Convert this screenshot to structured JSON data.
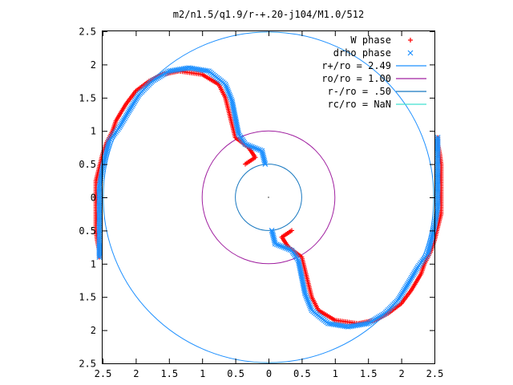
{
  "chart_data": {
    "type": "scatter",
    "title": "m2/n1.5/q1.9/r-+.20-j104/M1.0/512",
    "xlabel": "",
    "ylabel": "",
    "xlim": [
      -2.5,
      2.5
    ],
    "ylim": [
      -2.5,
      2.5
    ],
    "xticks": [
      -2.5,
      -2,
      -1.5,
      -1,
      -0.5,
      0,
      0.5,
      1,
      1.5,
      2,
      2.5
    ],
    "yticks": [
      -2.5,
      -2,
      -1.5,
      -1,
      -0.5,
      0,
      0.5,
      1,
      1.5,
      2,
      2.5
    ],
    "xtick_labels": [
      "2.5",
      "2",
      "1.5",
      "1",
      "0.5",
      "0",
      "0.5",
      "1",
      "1.5",
      "2",
      "2.5"
    ],
    "ytick_labels": [
      "2.5",
      "2",
      "1.5",
      "1",
      "0.5",
      "0",
      "0.5",
      "1",
      "1.5",
      "2",
      "2.5"
    ],
    "grid": false,
    "legend_position": "top-right",
    "series": [
      {
        "name": "W phase",
        "marker": "plus",
        "color": "#ff0000",
        "arms": [
          [
            [
              -0.35,
              0.5
            ],
            [
              -0.2,
              0.6
            ],
            [
              -0.3,
              0.75
            ],
            [
              -0.5,
              0.9
            ],
            [
              -0.55,
              1.1
            ],
            [
              -0.6,
              1.3
            ],
            [
              -0.65,
              1.5
            ],
            [
              -0.75,
              1.7
            ],
            [
              -1.0,
              1.85
            ],
            [
              -1.35,
              1.9
            ],
            [
              -1.6,
              1.85
            ],
            [
              -1.8,
              1.75
            ],
            [
              -2.0,
              1.6
            ],
            [
              -2.15,
              1.4
            ],
            [
              -2.3,
              1.15
            ],
            [
              -2.35,
              1.0
            ],
            [
              -2.45,
              0.8
            ],
            [
              -2.5,
              0.65
            ],
            [
              -2.55,
              0.45
            ],
            [
              -2.6,
              0.25
            ],
            [
              -2.6,
              0.05
            ],
            [
              -2.6,
              -0.15
            ],
            [
              -2.6,
              -0.35
            ],
            [
              -2.6,
              -0.5
            ],
            [
              -2.58,
              -0.65
            ],
            [
              -2.55,
              -0.8
            ],
            [
              -2.55,
              -0.9
            ]
          ],
          [
            [
              0.35,
              -0.5
            ],
            [
              0.2,
              -0.6
            ],
            [
              0.3,
              -0.75
            ],
            [
              0.5,
              -0.9
            ],
            [
              0.55,
              -1.1
            ],
            [
              0.6,
              -1.3
            ],
            [
              0.65,
              -1.5
            ],
            [
              0.75,
              -1.7
            ],
            [
              1.0,
              -1.85
            ],
            [
              1.35,
              -1.9
            ],
            [
              1.6,
              -1.85
            ],
            [
              1.8,
              -1.75
            ],
            [
              2.0,
              -1.6
            ],
            [
              2.15,
              -1.4
            ],
            [
              2.3,
              -1.15
            ],
            [
              2.35,
              -1.0
            ],
            [
              2.45,
              -0.8
            ],
            [
              2.5,
              -0.65
            ],
            [
              2.55,
              -0.45
            ],
            [
              2.6,
              -0.25
            ],
            [
              2.6,
              -0.05
            ],
            [
              2.6,
              0.15
            ],
            [
              2.6,
              0.35
            ],
            [
              2.6,
              0.5
            ],
            [
              2.58,
              0.65
            ],
            [
              2.55,
              0.8
            ],
            [
              2.55,
              0.9
            ]
          ]
        ]
      },
      {
        "name": "drho phase",
        "marker": "cross",
        "color": "#1e90ff",
        "arms": [
          [
            [
              -0.05,
              0.5
            ],
            [
              -0.1,
              0.7
            ],
            [
              -0.35,
              0.8
            ],
            [
              -0.45,
              0.95
            ],
            [
              -0.5,
              1.2
            ],
            [
              -0.55,
              1.45
            ],
            [
              -0.65,
              1.7
            ],
            [
              -0.9,
              1.9
            ],
            [
              -1.2,
              1.95
            ],
            [
              -1.5,
              1.9
            ],
            [
              -1.75,
              1.75
            ],
            [
              -1.95,
              1.55
            ],
            [
              -2.1,
              1.3
            ],
            [
              -2.25,
              1.05
            ],
            [
              -2.4,
              0.85
            ],
            [
              -2.45,
              0.65
            ],
            [
              -2.5,
              0.45
            ],
            [
              -2.55,
              0.15
            ],
            [
              -2.55,
              -0.15
            ],
            [
              -2.55,
              -0.45
            ],
            [
              -2.55,
              -0.7
            ],
            [
              -2.55,
              -0.9
            ]
          ],
          [
            [
              0.05,
              -0.5
            ],
            [
              0.1,
              -0.7
            ],
            [
              0.35,
              -0.8
            ],
            [
              0.45,
              -0.95
            ],
            [
              0.5,
              -1.2
            ],
            [
              0.55,
              -1.45
            ],
            [
              0.65,
              -1.7
            ],
            [
              0.9,
              -1.9
            ],
            [
              1.2,
              -1.95
            ],
            [
              1.5,
              -1.9
            ],
            [
              1.75,
              -1.75
            ],
            [
              1.95,
              -1.55
            ],
            [
              2.1,
              -1.3
            ],
            [
              2.25,
              -1.05
            ],
            [
              2.4,
              -0.85
            ],
            [
              2.45,
              -0.65
            ],
            [
              2.5,
              -0.45
            ],
            [
              2.55,
              -0.15
            ],
            [
              2.55,
              0.15
            ],
            [
              2.55,
              0.45
            ],
            [
              2.55,
              0.7
            ],
            [
              2.55,
              0.9
            ]
          ]
        ]
      }
    ],
    "circles": [
      {
        "name": "r+/ro = 2.49",
        "radius": 2.49,
        "color": "#1e90ff"
      },
      {
        "name": "ro/ro = 1.00",
        "radius": 1.0,
        "color": "#a020a0"
      },
      {
        "name": "r-/ro = .50",
        "radius": 0.5,
        "color": "#1878c0"
      },
      {
        "name": "rc/ro = NaN",
        "radius": null,
        "color": "#40e0d0"
      }
    ]
  }
}
